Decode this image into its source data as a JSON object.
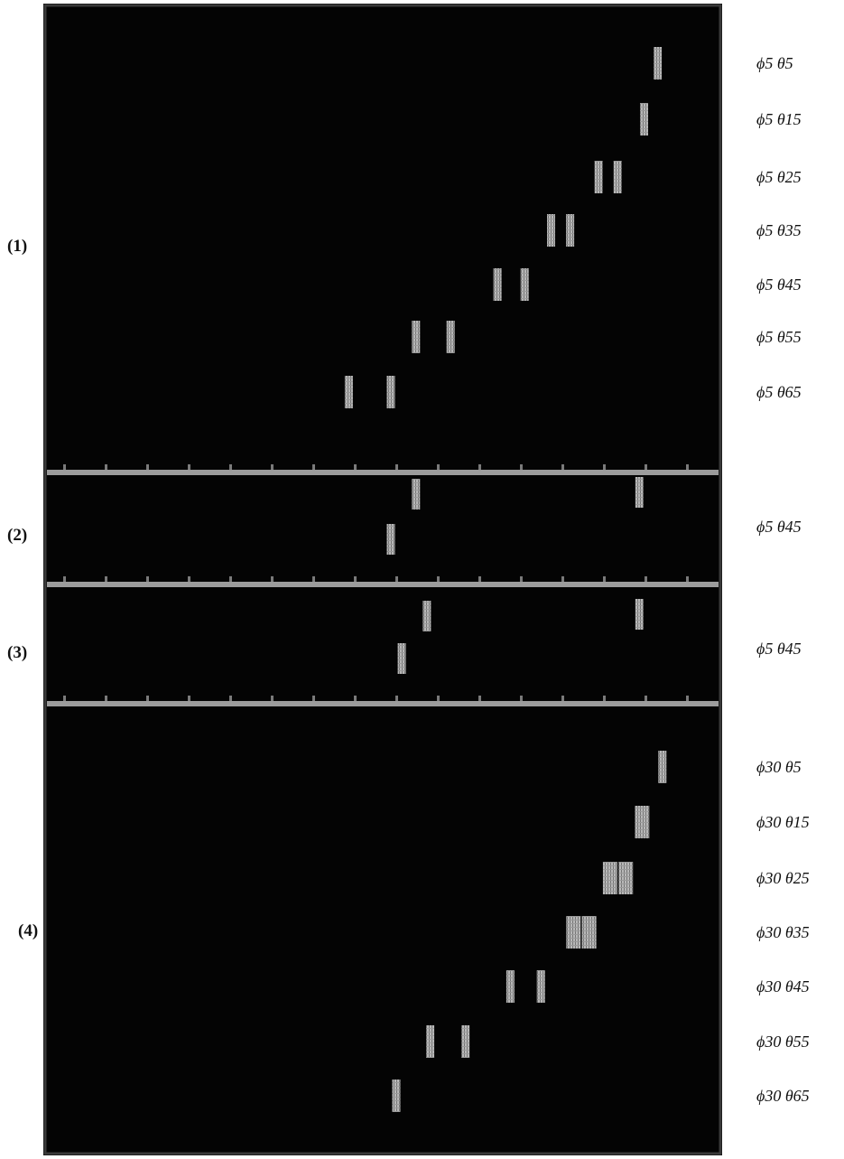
{
  "panels": [
    {
      "id": "1",
      "label": "(1)",
      "rows": [
        {
          "label": "ϕ5  θ5",
          "stripes": [
            0.905
          ]
        },
        {
          "label": "ϕ5  θ15",
          "stripes": [
            0.885
          ]
        },
        {
          "label": "ϕ5  θ25",
          "stripes": [
            0.818,
            0.846
          ]
        },
        {
          "label": "ϕ5  θ35",
          "stripes": [
            0.748,
            0.776
          ]
        },
        {
          "label": "ϕ5  θ45",
          "stripes": [
            0.669,
            0.709
          ]
        },
        {
          "label": "ϕ5  θ55",
          "stripes": [
            0.549,
            0.6
          ]
        },
        {
          "label": "ϕ5  θ65",
          "stripes": [
            0.45,
            0.512
          ]
        }
      ]
    },
    {
      "id": "2",
      "label": "(2)",
      "rows": [
        {
          "label": "ϕ5  θ45",
          "stripes": [
            0.512,
            0.549,
            0.878
          ]
        }
      ]
    },
    {
      "id": "3",
      "label": "(3)",
      "rows": [
        {
          "label": "ϕ5  θ45",
          "stripes": [
            0.528,
            0.565,
            0.878
          ]
        }
      ]
    },
    {
      "id": "4",
      "label": "(4)",
      "rows": [
        {
          "label": "ϕ30  θ5",
          "stripes": [
            0.912
          ]
        },
        {
          "label": "ϕ30  θ15",
          "stripes": [
            0.882
          ]
        },
        {
          "label": "ϕ30  θ25",
          "stripes": [
            0.835,
            0.858
          ]
        },
        {
          "label": "ϕ30  θ35",
          "stripes": [
            0.781,
            0.804
          ]
        },
        {
          "label": "ϕ30  θ45",
          "stripes": [
            0.688,
            0.733
          ]
        },
        {
          "label": "ϕ30  θ55",
          "stripes": [
            0.57,
            0.622
          ]
        },
        {
          "label": "ϕ30  θ65",
          "stripes": [
            0.52
          ]
        }
      ]
    }
  ]
}
